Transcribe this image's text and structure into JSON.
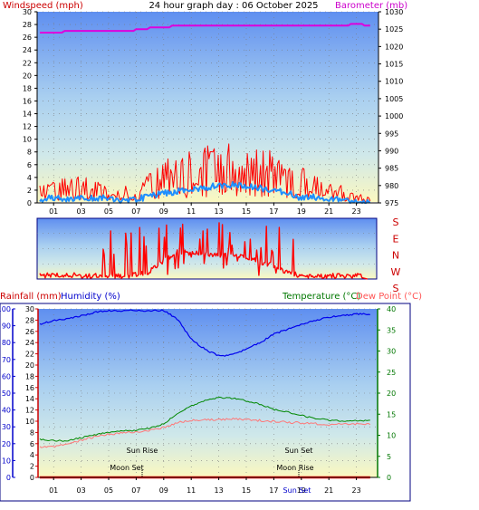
{
  "title": "24 hour graph day : 06 October 2025",
  "hour_ticks": [
    "01",
    "03",
    "05",
    "07",
    "09",
    "11",
    "13",
    "15",
    "17",
    "19",
    "21",
    "23"
  ],
  "colors": {
    "bg": "#ffffff",
    "frame": "#000080",
    "wind_label": "#cc0000",
    "baro_label": "#cc00cc",
    "rain_label": "#cc0000",
    "humidity_label": "#0000cc",
    "temp_label": "#007700",
    "dew_label": "#ff5555",
    "wind_series": "#ff0000",
    "gust_series": "#ff0000",
    "avg_wind_series": "#1e8fff",
    "baro_series": "#dd00dd",
    "dir_series": "#ff0000",
    "humidity_series": "#0000ee",
    "temp_series": "#008800",
    "dew_series": "#ff7777",
    "rain_series": "#ff0000",
    "sky_top": "#5f8ff0",
    "sky_mid": "#cfe6f0",
    "sky_bottom": "#faf7c2",
    "grid": "#7a7a7a"
  },
  "charts": {
    "wind": {
      "left_label": "Windspeed (mph)",
      "right_label": "Barometer (mb)",
      "left_ticks": [
        "0",
        "2",
        "4",
        "6",
        "8",
        "10",
        "12",
        "14",
        "16",
        "18",
        "20",
        "22",
        "24",
        "26",
        "28",
        "30"
      ],
      "right_ticks": [
        "975",
        "980",
        "985",
        "990",
        "995",
        "1000",
        "1005",
        "1010",
        "1015",
        "1020",
        "1025",
        "1030"
      ]
    },
    "direction": {
      "dir_labels": [
        "S",
        "E",
        "N",
        "W",
        "S"
      ]
    },
    "lower": {
      "rain_label": "Rainfall (mm)",
      "humidity_label": "Humidity (%)",
      "temp_label": "Temperature (°C)",
      "dew_label": "Dew Point (°C)",
      "humidity_ticks": [
        "0",
        "10",
        "20",
        "30",
        "40",
        "50",
        "60",
        "70",
        "80",
        "90",
        "100"
      ],
      "rain_ticks": [
        "0",
        "2",
        "4",
        "6",
        "8",
        "10",
        "12",
        "14",
        "16",
        "18",
        "20",
        "22",
        "24",
        "26",
        "28",
        "30"
      ],
      "temp_ticks": [
        "0",
        "5",
        "10",
        "15",
        "20",
        "25",
        "30",
        "35",
        "40"
      ],
      "annotations": {
        "sun_rise": "Sun Rise",
        "sun_set": "Sun Set",
        "moon_set": "Moon Set",
        "moon_rise": "Moon Rise",
        "sun_bottom": "Sun Set"
      }
    }
  },
  "chart_data": [
    {
      "type": "line",
      "title": "24 hour graph day : 06 October 2025",
      "xlabel": "",
      "ylabel": "Windspeed (mph)",
      "y2label": "Barometer (mb)",
      "ylim": [
        0,
        30
      ],
      "y2lim": [
        975,
        1030
      ],
      "x": [
        0,
        1,
        2,
        3,
        4,
        5,
        6,
        7,
        8,
        9,
        10,
        11,
        12,
        13,
        14,
        15,
        16,
        17,
        18,
        19,
        20,
        21,
        22,
        23,
        24
      ],
      "series": [
        {
          "name": "Windspeed (mph)",
          "axis": "left",
          "values": [
            2.2,
            2.0,
            1.8,
            2.1,
            1.6,
            2.2,
            1.1,
            1.2,
            2.0,
            3.2,
            3.6,
            4.2,
            4.6,
            5.3,
            5.1,
            4.9,
            4.6,
            4.5,
            3.5,
            2.6,
            2.3,
            2.0,
            1.5,
            0.6,
            0.5
          ]
        },
        {
          "name": "Windspeed gust (mph)",
          "axis": "left",
          "values": [
            3.8,
            3.6,
            3.2,
            3.6,
            3.0,
            3.8,
            2.3,
            2.1,
            4.1,
            6.0,
            6.6,
            7.4,
            7.5,
            9.0,
            8.3,
            7.7,
            7.3,
            7.1,
            5.8,
            4.7,
            4.1,
            3.2,
            2.8,
            1.2,
            0.9
          ]
        },
        {
          "name": "Average windspeed (mph)",
          "axis": "left",
          "values": [
            0.6,
            0.8,
            0.7,
            0.9,
            0.6,
            0.8,
            0.4,
            0.6,
            1.0,
            1.5,
            1.8,
            2.2,
            2.4,
            2.7,
            2.8,
            2.6,
            2.3,
            2.0,
            1.5,
            0.8,
            0.9,
            0.8,
            0.3,
            0.0,
            0.0
          ]
        },
        {
          "name": "Barometer (mb)",
          "axis": "right",
          "values": [
            1024.0,
            1024.1,
            1024.3,
            1024.6,
            1024.7,
            1024.6,
            1024.4,
            1024.8,
            1025.3,
            1025.7,
            1025.8,
            1026.0,
            1026.0,
            1026.0,
            1025.9,
            1025.9,
            1025.8,
            1025.8,
            1025.9,
            1025.9,
            1026.0,
            1026.1,
            1026.2,
            1026.3,
            1026.2
          ]
        }
      ]
    },
    {
      "type": "line",
      "title": "",
      "xlabel": "",
      "ylabel": "",
      "ylim": [
        0,
        360
      ],
      "y_category_labels": [
        "S",
        "E",
        "N",
        "W",
        "S"
      ],
      "x": [
        0,
        1,
        2,
        3,
        4,
        5,
        6,
        7,
        8,
        9,
        10,
        11,
        12,
        13,
        14,
        15,
        16,
        17,
        18,
        19,
        20,
        21,
        22,
        23,
        24
      ],
      "series": [
        {
          "name": "Wind direction",
          "values": [
            20,
            22,
            24,
            21,
            18,
            20,
            17,
            25,
            45,
            110,
            160,
            155,
            150,
            140,
            145,
            130,
            100,
            80,
            40,
            20,
            20,
            19,
            18,
            20,
            12
          ]
        }
      ]
    },
    {
      "type": "line",
      "title": "",
      "xlabel": "",
      "ylabel": "Humidity (%)",
      "y2label": "Temperature (°C)",
      "ylim": [
        0,
        100
      ],
      "y2lim": [
        0,
        40
      ],
      "rain_ylabel": "Rainfall (mm)",
      "rain_ylim": [
        0,
        30
      ],
      "x": [
        0,
        1,
        2,
        3,
        4,
        5,
        6,
        7,
        8,
        9,
        10,
        11,
        12,
        13,
        14,
        15,
        16,
        17,
        18,
        19,
        20,
        21,
        22,
        23,
        24
      ],
      "series": [
        {
          "name": "Humidity (%)",
          "axis": "left",
          "values": [
            91,
            93,
            94,
            96,
            98,
            99,
            99,
            99,
            99,
            99,
            94,
            82,
            76,
            72,
            73,
            76,
            80,
            85,
            88,
            91,
            93,
            95,
            96,
            97,
            97
          ]
        },
        {
          "name": "Temperature (°C)",
          "axis": "right",
          "values": [
            9.0,
            8.7,
            8.7,
            9.4,
            10.1,
            10.7,
            11.0,
            11.2,
            11.7,
            12.7,
            15.2,
            17.0,
            18.3,
            18.9,
            18.8,
            18.2,
            17.4,
            16.1,
            15.5,
            14.7,
            14.0,
            13.6,
            13.4,
            13.5,
            13.5
          ]
        },
        {
          "name": "Dew Point (°C)",
          "axis": "right",
          "values": [
            7.2,
            7.3,
            7.8,
            8.8,
            9.7,
            10.2,
            10.6,
            10.8,
            11.2,
            11.8,
            13.0,
            13.6,
            13.7,
            13.7,
            13.9,
            13.7,
            13.5,
            13.3,
            13.1,
            12.9,
            12.8,
            12.5,
            12.6,
            12.7,
            12.7
          ]
        },
        {
          "name": "Rainfall (mm)",
          "axis": "rain",
          "values": [
            0,
            0,
            0,
            0,
            0,
            0,
            0,
            0,
            0,
            0,
            0,
            0,
            0,
            0,
            0,
            0,
            0,
            0,
            0,
            0,
            0,
            0,
            0,
            0,
            0
          ]
        }
      ]
    }
  ]
}
